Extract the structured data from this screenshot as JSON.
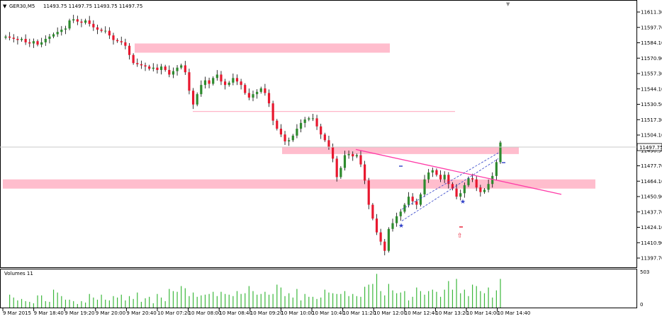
{
  "header": {
    "symbol_info": "GER30,M5",
    "ohlc": "11493.75 11497.75 11493.75 11497.75"
  },
  "volume_pane": {
    "label": "Volumes 11",
    "max_label": "503",
    "min_label": "0"
  },
  "current_price_label": "11497.75",
  "colors": {
    "bull": "#2e8b2e",
    "bear": "#e8182f",
    "zone": "#ffb6c8",
    "trendline": "#ff3ca8",
    "channel": "#3040c8",
    "volume": "#3cb83c"
  },
  "chart_data": {
    "type": "candlestick",
    "symbol": "GER30",
    "timeframe": "M5",
    "y_ticks": [
      "11611.30",
      "11597.70",
      "11584.10",
      "11570.90",
      "11557.30",
      "11544.10",
      "11530.50",
      "11517.30",
      "11504.10",
      "11490.50",
      "11477.70",
      "11464.10",
      "11450.90",
      "11437.70",
      "11424.10",
      "11410.90",
      "11397.70"
    ],
    "x_ticks": [
      "9 Mar 2015",
      "9 Mar 18:40",
      "9 Mar 19:20",
      "9 Mar 20:00",
      "9 Mar 20:40",
      "10 Mar 07:20",
      "10 Mar 08:00",
      "10 Mar 08:40",
      "10 Mar 09:20",
      "10 Mar 10:00",
      "10 Mar 10:40",
      "10 Mar 11:20",
      "10 Mar 12:00",
      "10 Mar 12:40",
      "10 Mar 13:20",
      "10 Mar 14:00",
      "10 Mar 14:40"
    ],
    "ylim": [
      11394,
      11618
    ],
    "current_price": 11497.75,
    "closes": [
      11590,
      11589,
      11588,
      11587,
      11588,
      11585,
      11584,
      11586,
      11583,
      11585,
      11588,
      11590,
      11592,
      11594,
      11596,
      11597,
      11604,
      11605,
      11603,
      11602,
      11604,
      11601,
      11598,
      11596,
      11595,
      11595,
      11591,
      11587,
      11586,
      11585,
      11582,
      11574,
      11567,
      11566,
      11565,
      11564,
      11562,
      11563,
      11561,
      11564,
      11561,
      11557,
      11560,
      11563,
      11565,
      11559,
      11543,
      11531,
      11540,
      11548,
      11552,
      11549,
      11554,
      11557,
      11551,
      11548,
      11550,
      11554,
      11551,
      11548,
      11541,
      11537,
      11540,
      11542,
      11545,
      11541,
      11532,
      11517,
      11510,
      11505,
      11499,
      11500,
      11504,
      11510,
      11515,
      11518,
      11519,
      11519,
      11512,
      11505,
      11500,
      11494,
      11484,
      11468,
      11476,
      11487,
      11488,
      11486,
      11487,
      11479,
      11465,
      11444,
      11432,
      11420,
      11412,
      11404,
      11423,
      11428,
      11434,
      11438,
      11444,
      11451,
      11447,
      11444,
      11453,
      11466,
      11472,
      11474,
      11470,
      11466,
      11470,
      11462,
      11458,
      11451,
      11454,
      11461,
      11467,
      11466,
      11459,
      11455,
      11457,
      11462,
      11469,
      11481,
      11498
    ],
    "volumes": [
      0,
      180,
      140,
      100,
      120,
      90,
      80,
      60,
      170,
      170,
      90,
      80,
      250,
      210,
      160,
      110,
      110,
      90,
      50,
      90,
      70,
      190,
      140,
      110,
      180,
      110,
      100,
      160,
      140,
      180,
      100,
      160,
      120,
      210,
      80,
      130,
      150,
      60,
      190,
      140,
      90,
      260,
      230,
      220,
      300,
      270,
      160,
      210,
      150,
      170,
      180,
      190,
      220,
      160,
      220,
      190,
      180,
      160,
      230,
      190,
      200,
      300,
      230,
      180,
      190,
      220,
      180,
      190,
      320,
      280,
      160,
      200,
      140,
      260,
      100,
      190,
      150,
      150,
      120,
      140,
      250,
      210,
      200,
      190,
      190,
      230,
      160,
      190,
      160,
      150,
      290,
      320,
      330,
      470,
      230,
      170,
      330,
      240,
      200,
      210,
      230,
      100,
      150,
      280,
      230,
      180,
      230,
      250,
      220,
      150,
      250,
      370,
      250,
      400,
      200,
      250,
      160,
      320,
      300,
      230,
      200,
      280,
      140,
      240,
      400
    ],
    "max_volume": 503,
    "drawn_objects": [
      {
        "kind": "supply-zone",
        "price_low": 11576,
        "price_high": 11584
      },
      {
        "kind": "horizontal-line",
        "price": 11525
      },
      {
        "kind": "zone",
        "price_low": 11488,
        "price_high": 11494
      },
      {
        "kind": "demand-zone",
        "price_low": 11458,
        "price_high": 11466
      },
      {
        "kind": "trendline",
        "from": 11492,
        "to": 11453
      },
      {
        "kind": "channel-line",
        "from": 11430,
        "to": 11484
      },
      {
        "kind": "channel-line",
        "from": 11440,
        "to": 11489
      }
    ]
  }
}
